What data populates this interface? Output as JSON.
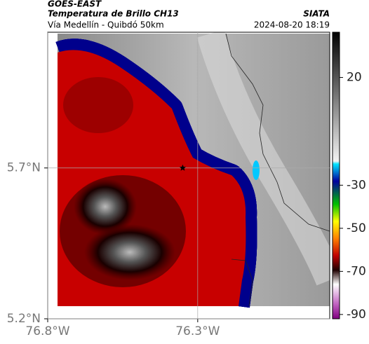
{
  "header": {
    "product": "GOES-EAST",
    "title": "Temperatura de Brillo CH13",
    "subtitle": "Vía Medellín - Quibdó 50km",
    "source": "SIATA",
    "datetime": "2024-08-20 18:19"
  },
  "map": {
    "lonlim": [
      -76.8,
      -75.86
    ],
    "latlim": [
      5.2,
      6.15
    ],
    "xticks": [
      {
        "value": -76.8,
        "label": "76.8°W"
      },
      {
        "value": -76.3,
        "label": "76.3°W"
      }
    ],
    "yticks": [
      {
        "value": 5.7,
        "label": "5.7°N"
      },
      {
        "value": 5.2,
        "label": "5.2°N"
      }
    ],
    "marker": {
      "lon": -76.35,
      "lat": 5.7
    }
  },
  "colorbar": {
    "lim": [
      -92,
      41
    ],
    "ticks": [
      20,
      -30,
      -50,
      -70,
      -90
    ]
  }
}
